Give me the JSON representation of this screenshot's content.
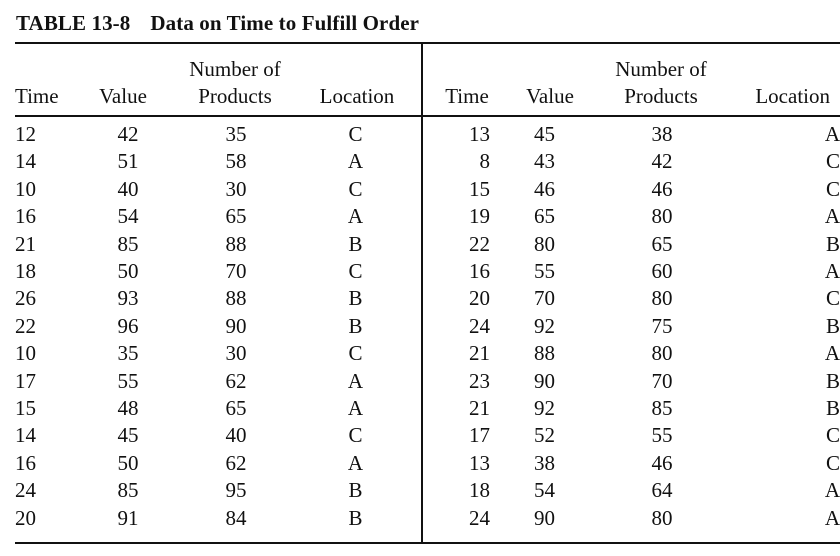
{
  "caption": {
    "label": "TABLE 13-8",
    "title": "Data on Time to Fulfill Order"
  },
  "columns": {
    "time": "Time",
    "value": "Value",
    "products_line1": "Number of",
    "products_line2": "Products",
    "location": "Location"
  },
  "left_rows": [
    [
      "12",
      "42",
      "35",
      "C"
    ],
    [
      "14",
      "51",
      "58",
      "A"
    ],
    [
      "10",
      "40",
      "30",
      "C"
    ],
    [
      "16",
      "54",
      "65",
      "A"
    ],
    [
      "21",
      "85",
      "88",
      "B"
    ],
    [
      "18",
      "50",
      "70",
      "C"
    ],
    [
      "26",
      "93",
      "88",
      "B"
    ],
    [
      "22",
      "96",
      "90",
      "B"
    ],
    [
      "10",
      "35",
      "30",
      "C"
    ],
    [
      "17",
      "55",
      "62",
      "A"
    ],
    [
      "15",
      "48",
      "65",
      "A"
    ],
    [
      "14",
      "45",
      "40",
      "C"
    ],
    [
      "16",
      "50",
      "62",
      "A"
    ],
    [
      "24",
      "85",
      "95",
      "B"
    ],
    [
      "20",
      "91",
      "84",
      "B"
    ]
  ],
  "right_rows": [
    [
      "13",
      "45",
      "38",
      "A"
    ],
    [
      "8",
      "43",
      "42",
      "C"
    ],
    [
      "15",
      "46",
      "46",
      "C"
    ],
    [
      "19",
      "65",
      "80",
      "A"
    ],
    [
      "22",
      "80",
      "65",
      "B"
    ],
    [
      "16",
      "55",
      "60",
      "A"
    ],
    [
      "20",
      "70",
      "80",
      "C"
    ],
    [
      "24",
      "92",
      "75",
      "B"
    ],
    [
      "21",
      "88",
      "80",
      "A"
    ],
    [
      "23",
      "90",
      "70",
      "B"
    ],
    [
      "21",
      "92",
      "85",
      "B"
    ],
    [
      "17",
      "52",
      "55",
      "C"
    ],
    [
      "13",
      "38",
      "46",
      "C"
    ],
    [
      "18",
      "54",
      "64",
      "A"
    ],
    [
      "24",
      "90",
      "80",
      "A"
    ]
  ]
}
